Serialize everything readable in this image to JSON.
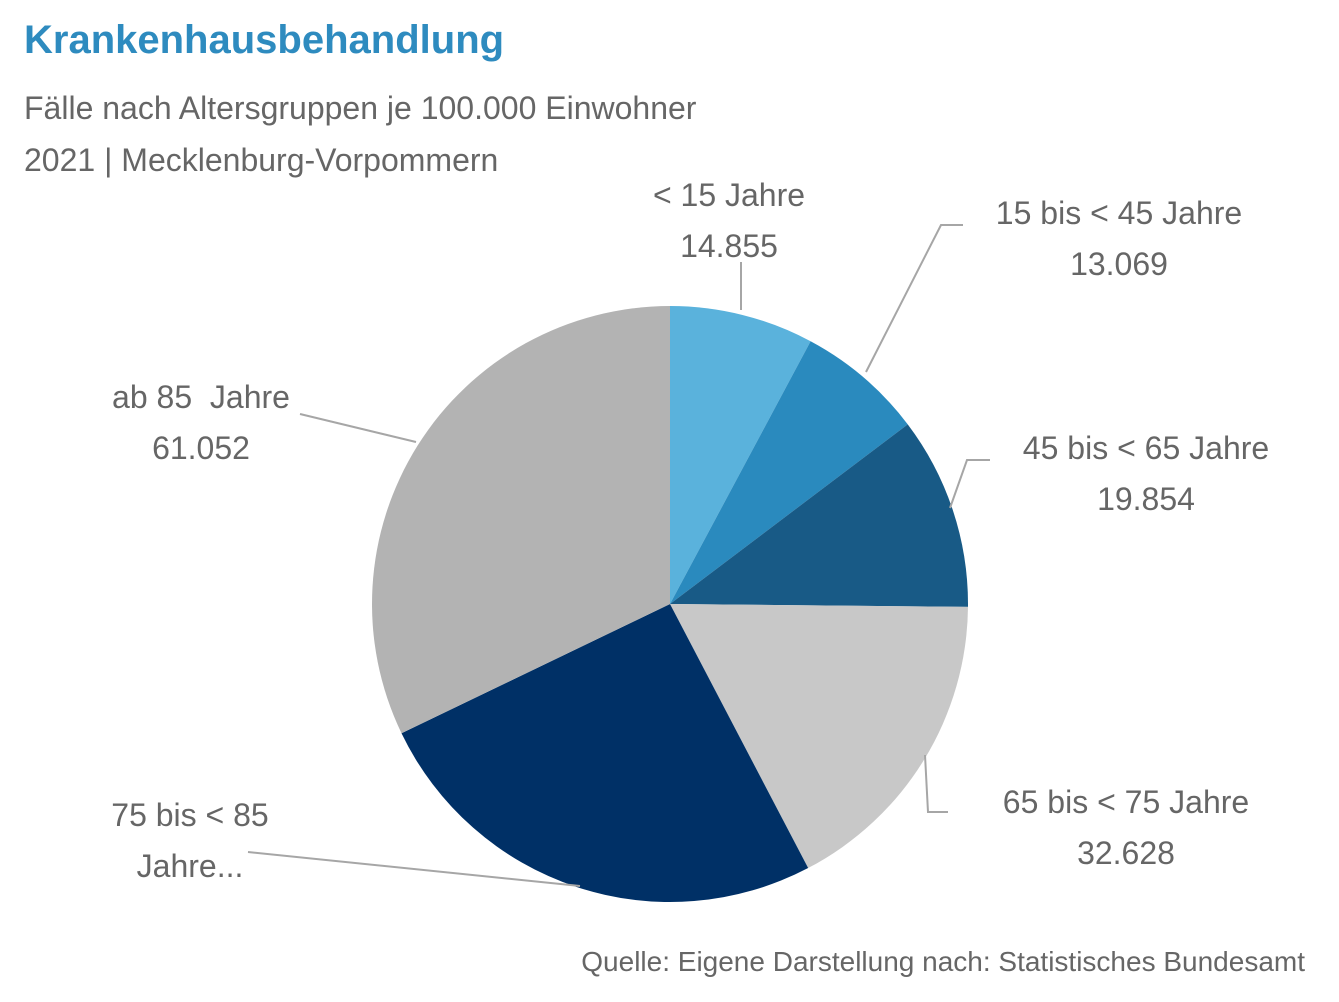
{
  "title": "Krankenhausbehandlung",
  "subtitle_line1": "Fälle nach Altersgruppen je 100.000 Einwohner",
  "subtitle_line2": "2021 | Mecklenburg-Vorpommern",
  "source": "Quelle: Eigene Darstellung nach: Statistisches Bundesamt",
  "chart_data": {
    "type": "pie",
    "start_angle_deg": 0,
    "direction": "clockwise",
    "slices": [
      {
        "label": "< 15 Jahre",
        "value": 14855,
        "value_label": "14.855",
        "color": "#5ab2dc"
      },
      {
        "label": "15 bis < 45 Jahre",
        "value": 13069,
        "value_label": "13.069",
        "color": "#2a8abe"
      },
      {
        "label": "45 bis < 65 Jahre",
        "value": 19854,
        "value_label": "19.854",
        "color": "#185a86"
      },
      {
        "label": "65 bis < 75 Jahre",
        "value": 32628,
        "value_label": "32.628",
        "color": "#c8c8c8"
      },
      {
        "label_line1": "75 bis < 85",
        "label_line2": "Jahre...",
        "value": 48500,
        "color": "#003066"
      },
      {
        "label": "ab 85  Jahre",
        "value": 61052,
        "value_label": "61.052",
        "color": "#b3b3b3"
      }
    ]
  }
}
